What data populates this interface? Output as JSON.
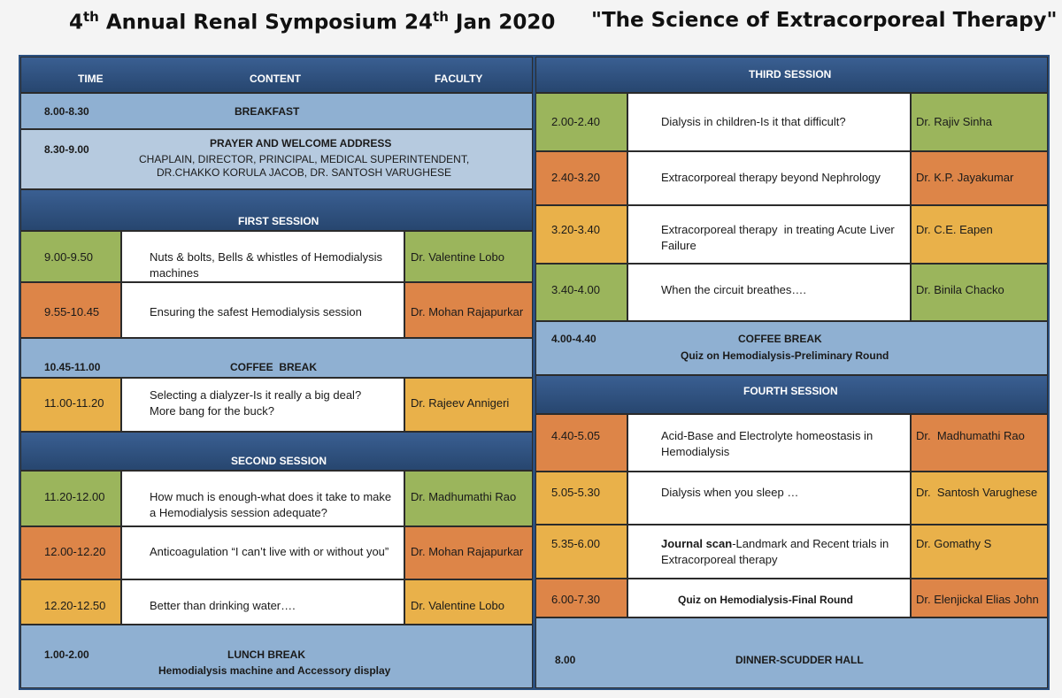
{
  "header": {
    "left_pre": "4",
    "left_sup1": "th",
    "left_mid": " Annual Renal Symposium 24",
    "left_sup2": "th",
    "left_post": " Jan 2020",
    "right": "\"The Science of Extracorporeal Therapy\""
  },
  "left": {
    "col_time": "TIME",
    "col_content": "CONTENT",
    "col_faculty": "FACULTY",
    "breakfast": {
      "time": "8.00-8.30",
      "label": "BREAKFAST"
    },
    "welcome": {
      "time": "8.30-9.00",
      "title": "PRAYER AND WELCOME ADDRESS",
      "line1": "CHAPLAIN, DIRECTOR, PRINCIPAL, MEDICAL SUPERINTENDENT,",
      "line2": "DR.CHAKKO KORULA JACOB, DR. SANTOSH VARUGHESE"
    },
    "first_session": "FIRST SESSION",
    "r1": {
      "time": "9.00-9.50",
      "c1": "Nuts & bolts, Bells & whistles of Hemodialysis",
      "c2": "machines",
      "faculty": "Dr. Valentine Lobo"
    },
    "r2": {
      "time": "9.55-10.45",
      "c1": "Ensuring the safest Hemodialysis session",
      "faculty": "Dr. Mohan Rajapurkar"
    },
    "coffee": {
      "time": "10.45-11.00",
      "label": "COFFEE  BREAK"
    },
    "r3": {
      "time": "11.00-11.20",
      "c1": "Selecting a dialyzer-Is it really a big deal?",
      "c2": "More bang for the buck?",
      "faculty": "Dr. Rajeev Annigeri"
    },
    "second_session": "SECOND SESSION",
    "r4": {
      "time": "11.20-12.00",
      "c1": "How much is enough-what does it take to make",
      "c2": "a Hemodialysis session adequate?",
      "faculty": "Dr. Madhumathi Rao"
    },
    "r5": {
      "time": "12.00-12.20",
      "c1": "Anticoagulation “I can’t live with or without you”",
      "faculty": "Dr. Mohan Rajapurkar"
    },
    "r6": {
      "time": "12.20-12.50",
      "c1": "Better than drinking water….",
      "faculty": "Dr. Valentine Lobo"
    },
    "lunch": {
      "time": "1.00-2.00",
      "label": "LUNCH BREAK",
      "sub": "Hemodialysis machine and Accessory display"
    }
  },
  "right": {
    "third_session": "THIRD SESSION",
    "r1": {
      "time": "2.00-2.40",
      "c1": "Dialysis in children-Is it that difficult?",
      "faculty": "Dr. Rajiv Sinha"
    },
    "r2": {
      "time": "2.40-3.20",
      "c1": "Extracorporeal therapy beyond Nephrology",
      "faculty": "Dr. K.P. Jayakumar"
    },
    "r3": {
      "time": "3.20-3.40",
      "c1": "Extracorporeal therapy  in treating Acute Liver",
      "c2": "Failure",
      "faculty": "Dr. C.E. Eapen"
    },
    "r4": {
      "time": "3.40-4.00",
      "c1": "When the circuit breathes….",
      "faculty": "Dr. Binila Chacko"
    },
    "coffee": {
      "time": "4.00-4.40",
      "label": "COFFEE BREAK",
      "sub": "Quiz on Hemodialysis-Preliminary Round"
    },
    "fourth_session": "FOURTH SESSION",
    "r5": {
      "time": "4.40-5.05",
      "c1": "Acid-Base and Electrolyte homeostasis in",
      "c2": "Hemodialysis",
      "faculty": "Dr.  Madhumathi Rao"
    },
    "r6": {
      "time": "5.05-5.30",
      "c1": "Dialysis when you sleep …",
      "faculty": "Dr.  Santosh Varughese"
    },
    "r7": {
      "time": "5.35-6.00",
      "c1_bold": "Journal scan",
      "c1_rest": "-Landmark and Recent trials in",
      "c2": "Extracorporeal therapy",
      "faculty": "Dr. Gomathy S"
    },
    "r8": {
      "time": "6.00-7.30",
      "c1": "Quiz on Hemodialysis-Final Round",
      "faculty": "Dr. Elenjickal Elias John"
    },
    "dinner": {
      "time": "8.00",
      "label": "DINNER-SCUDDER HALL"
    }
  },
  "colors": {
    "navy": "#2d4f7f",
    "blue": "#8fb0d2",
    "green": "#9bb55c",
    "orange": "#dd8548",
    "amber": "#e9b14a"
  }
}
